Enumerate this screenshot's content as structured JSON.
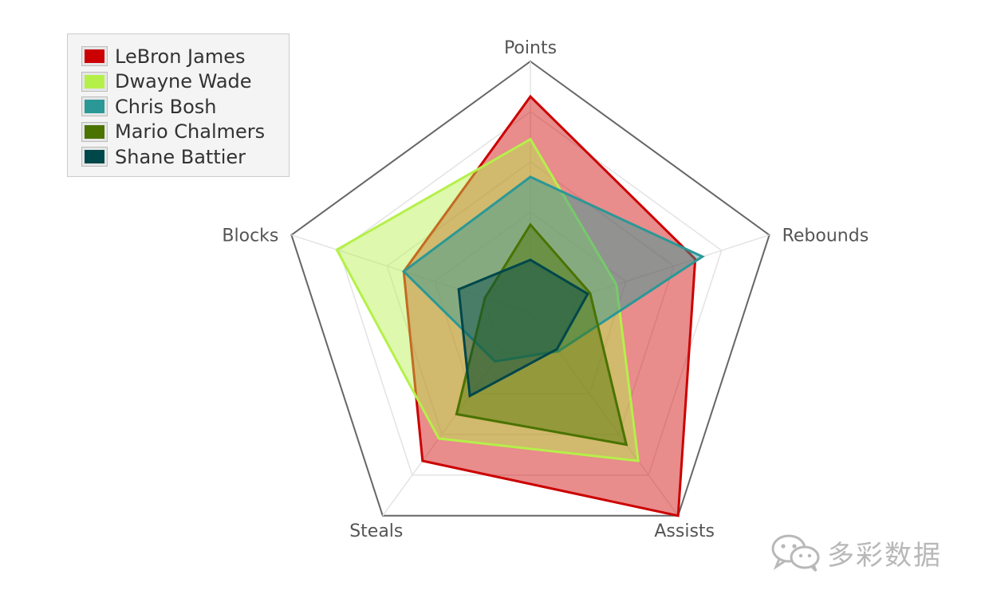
{
  "chart_data": {
    "type": "radar",
    "axes": [
      "Points",
      "Rebounds",
      "Assists",
      "Steals",
      "Blocks"
    ],
    "rmax": 10,
    "rings": 5,
    "series": [
      {
        "name": "LeBron James",
        "color": "#cc0000",
        "values": [
          8.6,
          6.9,
          10.0,
          7.3,
          5.3
        ]
      },
      {
        "name": "Dwayne Wade",
        "color": "#b5f04a",
        "values": [
          6.9,
          3.6,
          7.3,
          6.2,
          8.1
        ]
      },
      {
        "name": "Chris Bosh",
        "color": "#2a9896",
        "values": [
          5.4,
          7.2,
          1.9,
          2.4,
          5.3
        ]
      },
      {
        "name": "Mario Chalmers",
        "color": "#4a7300",
        "values": [
          3.5,
          2.5,
          6.5,
          5.0,
          1.9
        ]
      },
      {
        "name": "Shane Battier",
        "color": "#00474a",
        "values": [
          2.1,
          2.4,
          1.8,
          4.1,
          3.0
        ]
      }
    ],
    "legend_position": "top-left"
  },
  "watermark": {
    "text": "多彩数据",
    "icon": "wechat-icon"
  }
}
